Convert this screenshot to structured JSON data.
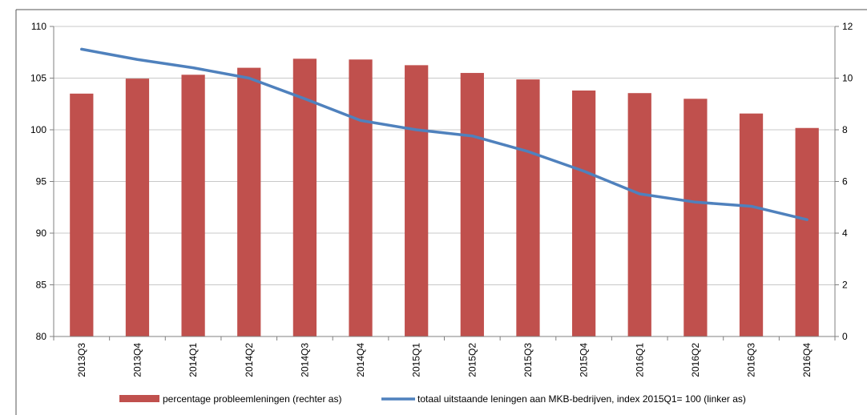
{
  "chart_data": {
    "type": "bar+line",
    "categories": [
      "2013Q3",
      "2013Q4",
      "2014Q1",
      "2014Q2",
      "2014Q3",
      "2014Q4",
      "2015Q1",
      "2015Q2",
      "2015Q3",
      "2015Q4",
      "2016Q1",
      "2016Q2",
      "2016Q3",
      "2016Q4"
    ],
    "series": [
      {
        "name": "percentage probleemleningen (rechter as)",
        "type": "bar",
        "axis": "right",
        "color": "#C0504D",
        "values": [
          9.4,
          9.98,
          10.13,
          10.4,
          10.75,
          10.72,
          10.5,
          10.2,
          9.95,
          9.52,
          9.42,
          9.2,
          8.63,
          8.07
        ]
      },
      {
        "name": "totaal uitstaande leningen aan MKB-bedrijven, index 2015Q1= 100 (linker as)",
        "type": "line",
        "axis": "left",
        "color": "#4F81BD",
        "values": [
          107.8,
          106.8,
          106.0,
          105.0,
          103.0,
          100.9,
          100.0,
          99.4,
          97.9,
          96.0,
          93.8,
          93.0,
          92.6,
          91.3
        ]
      }
    ],
    "left_axis": {
      "ylim": [
        80,
        110
      ],
      "ticks": [
        80,
        85,
        90,
        95,
        100,
        105,
        110
      ]
    },
    "right_axis": {
      "ylim": [
        0,
        12
      ],
      "ticks": [
        0,
        2,
        4,
        6,
        8,
        10,
        12
      ]
    },
    "grid": true,
    "legend": "bottom"
  }
}
